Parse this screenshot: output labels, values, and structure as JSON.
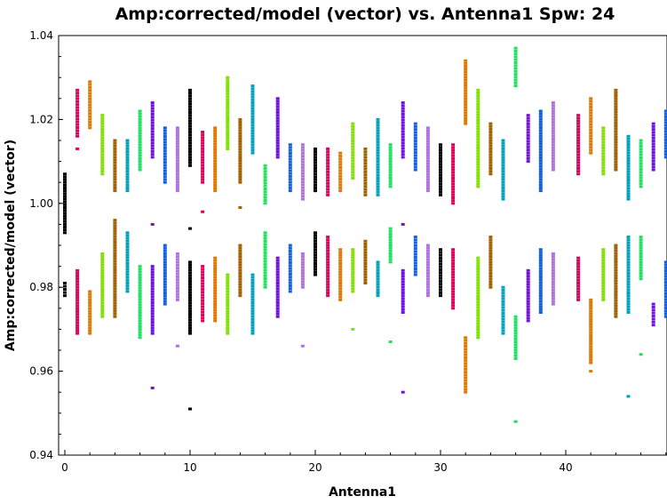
{
  "chart_data": {
    "type": "scatter",
    "title": "Amp:corrected/model (vector) vs. Antenna1 Spw: 24",
    "xlabel": "Antenna1",
    "ylabel": "Amp:corrected/model (vector)",
    "xlim": [
      -0.5,
      48
    ],
    "ylim": [
      0.94,
      1.04
    ],
    "x_ticks": [
      0,
      10,
      20,
      30,
      40
    ],
    "y_ticks": [
      0.94,
      0.96,
      0.98,
      1.0,
      1.02,
      1.04
    ],
    "y_tick_labels": [
      "0.94",
      "0.96",
      "0.98",
      "1.00",
      "1.02",
      "1.04"
    ],
    "grid": false,
    "series": [
      {
        "color": "#000000",
        "points": [
          {
            "x": 0,
            "upper": [
              0.993,
              1.007
            ],
            "lower": [
              0.978,
              0.981
            ]
          },
          {
            "x": 10,
            "upper": [
              1.009,
              1.027
            ],
            "lower": [
              0.969,
              0.986
            ],
            "extra": [
              0.951,
              0.994
            ]
          },
          {
            "x": 20,
            "upper": [
              1.003,
              1.013
            ],
            "lower": [
              0.983,
              0.993
            ]
          },
          {
            "x": 30,
            "upper": [
              1.002,
              1.014
            ],
            "lower": [
              0.978,
              0.989
            ]
          }
        ]
      },
      {
        "color": "#e0005a",
        "points": [
          {
            "x": 1,
            "upper": [
              1.016,
              1.027
            ],
            "lower": [
              0.969,
              0.984
            ],
            "extra": [
              1.013
            ]
          },
          {
            "x": 11,
            "upper": [
              1.005,
              1.017
            ],
            "lower": [
              0.972,
              0.985
            ],
            "extra": [
              0.998
            ]
          },
          {
            "x": 21,
            "upper": [
              1.002,
              1.013
            ],
            "lower": [
              0.978,
              0.992
            ]
          },
          {
            "x": 31,
            "upper": [
              1.0,
              1.014
            ],
            "lower": [
              0.975,
              0.989
            ]
          },
          {
            "x": 41,
            "upper": [
              1.007,
              1.021
            ],
            "lower": [
              0.977,
              0.987
            ]
          }
        ]
      },
      {
        "color": "#e07800",
        "points": [
          {
            "x": 2,
            "upper": [
              1.018,
              1.029
            ],
            "lower": [
              0.969,
              0.979
            ]
          },
          {
            "x": 12,
            "upper": [
              1.003,
              1.018
            ],
            "lower": [
              0.972,
              0.987
            ]
          },
          {
            "x": 22,
            "upper": [
              1.003,
              1.012
            ],
            "lower": [
              0.977,
              0.989
            ]
          },
          {
            "x": 32,
            "upper": [
              1.019,
              1.034
            ],
            "lower": [
              0.955,
              0.968
            ]
          },
          {
            "x": 42,
            "upper": [
              1.012,
              1.025
            ],
            "lower": [
              0.962,
              0.977
            ],
            "extra": [
              0.96
            ]
          }
        ]
      },
      {
        "color": "#80e000",
        "points": [
          {
            "x": 3,
            "upper": [
              1.007,
              1.021
            ],
            "lower": [
              0.973,
              0.988
            ]
          },
          {
            "x": 13,
            "upper": [
              1.013,
              1.03
            ],
            "lower": [
              0.969,
              0.983
            ]
          },
          {
            "x": 23,
            "upper": [
              1.006,
              1.019
            ],
            "lower": [
              0.979,
              0.989
            ],
            "extra": [
              0.97
            ]
          },
          {
            "x": 33,
            "upper": [
              1.004,
              1.027
            ],
            "lower": [
              0.968,
              0.987
            ]
          },
          {
            "x": 43,
            "upper": [
              1.007,
              1.018
            ],
            "lower": [
              0.977,
              0.989
            ]
          }
        ]
      },
      {
        "color": "#a06000",
        "points": [
          {
            "x": 4,
            "upper": [
              1.003,
              1.015
            ],
            "lower": [
              0.973,
              0.996
            ]
          },
          {
            "x": 14,
            "upper": [
              1.005,
              1.02
            ],
            "lower": [
              0.978,
              0.99
            ],
            "extra": [
              0.999
            ]
          },
          {
            "x": 24,
            "upper": [
              1.002,
              1.013
            ],
            "lower": [
              0.981,
              0.991
            ]
          },
          {
            "x": 34,
            "upper": [
              1.007,
              1.019
            ],
            "lower": [
              0.98,
              0.992
            ]
          },
          {
            "x": 44,
            "upper": [
              1.008,
              1.027
            ],
            "lower": [
              0.973,
              0.99
            ]
          }
        ]
      },
      {
        "color": "#00a0c0",
        "points": [
          {
            "x": 5,
            "upper": [
              1.003,
              1.015
            ],
            "lower": [
              0.979,
              0.993
            ]
          },
          {
            "x": 15,
            "upper": [
              1.012,
              1.028
            ],
            "lower": [
              0.969,
              0.983
            ]
          },
          {
            "x": 25,
            "upper": [
              1.002,
              1.02
            ],
            "lower": [
              0.978,
              0.986
            ]
          },
          {
            "x": 35,
            "upper": [
              1.001,
              1.015
            ],
            "lower": [
              0.969,
              0.98
            ]
          },
          {
            "x": 45,
            "upper": [
              1.001,
              1.016
            ],
            "lower": [
              0.974,
              0.992
            ],
            "extra": [
              0.954
            ]
          }
        ]
      },
      {
        "color": "#20e060",
        "points": [
          {
            "x": 6,
            "upper": [
              1.008,
              1.022
            ],
            "lower": [
              0.968,
              0.985
            ]
          },
          {
            "x": 16,
            "upper": [
              1.0,
              1.009
            ],
            "lower": [
              0.98,
              0.993
            ]
          },
          {
            "x": 26,
            "upper": [
              1.004,
              1.014
            ],
            "lower": [
              0.986,
              0.994
            ],
            "extra": [
              0.967
            ]
          },
          {
            "x": 36,
            "upper": [
              1.028,
              1.037
            ],
            "lower": [
              0.963,
              0.973
            ],
            "extra": [
              0.948
            ]
          },
          {
            "x": 46,
            "upper": [
              1.004,
              1.015
            ],
            "lower": [
              0.982,
              0.992
            ],
            "extra": [
              0.964
            ]
          }
        ]
      },
      {
        "color": "#7010e0",
        "points": [
          {
            "x": 7,
            "upper": [
              1.011,
              1.024
            ],
            "lower": [
              0.969,
              0.985
            ],
            "extra": [
              0.995,
              0.956
            ]
          },
          {
            "x": 17,
            "upper": [
              1.011,
              1.025
            ],
            "lower": [
              0.973,
              0.987
            ]
          },
          {
            "x": 27,
            "upper": [
              1.011,
              1.024
            ],
            "lower": [
              0.974,
              0.984
            ],
            "extra": [
              0.995,
              0.955
            ]
          },
          {
            "x": 37,
            "upper": [
              1.01,
              1.021
            ],
            "lower": [
              0.972,
              0.984
            ]
          },
          {
            "x": 47,
            "upper": [
              1.008,
              1.019
            ],
            "lower": [
              0.971,
              0.976
            ]
          }
        ]
      },
      {
        "color": "#1060e0",
        "points": [
          {
            "x": 8,
            "upper": [
              1.005,
              1.018
            ],
            "lower": [
              0.976,
              0.99
            ]
          },
          {
            "x": 18,
            "upper": [
              1.003,
              1.014
            ],
            "lower": [
              0.979,
              0.99
            ]
          },
          {
            "x": 28,
            "upper": [
              1.008,
              1.019
            ],
            "lower": [
              0.983,
              0.992
            ]
          },
          {
            "x": 38,
            "upper": [
              1.003,
              1.022
            ],
            "lower": [
              0.974,
              0.989
            ]
          },
          {
            "x": 48,
            "upper": [
              1.011,
              1.022
            ],
            "lower": [
              0.973,
              0.986
            ]
          }
        ]
      },
      {
        "color": "#b070e0",
        "points": [
          {
            "x": 9,
            "upper": [
              1.003,
              1.018
            ],
            "lower": [
              0.977,
              0.988
            ],
            "extra": [
              0.966
            ]
          },
          {
            "x": 19,
            "upper": [
              1.001,
              1.014
            ],
            "lower": [
              0.98,
              0.988
            ],
            "extra": [
              0.966
            ]
          },
          {
            "x": 29,
            "upper": [
              1.003,
              1.018
            ],
            "lower": [
              0.978,
              0.99
            ]
          },
          {
            "x": 39,
            "upper": [
              1.008,
              1.024
            ],
            "lower": [
              0.976,
              0.988
            ]
          }
        ]
      }
    ]
  }
}
